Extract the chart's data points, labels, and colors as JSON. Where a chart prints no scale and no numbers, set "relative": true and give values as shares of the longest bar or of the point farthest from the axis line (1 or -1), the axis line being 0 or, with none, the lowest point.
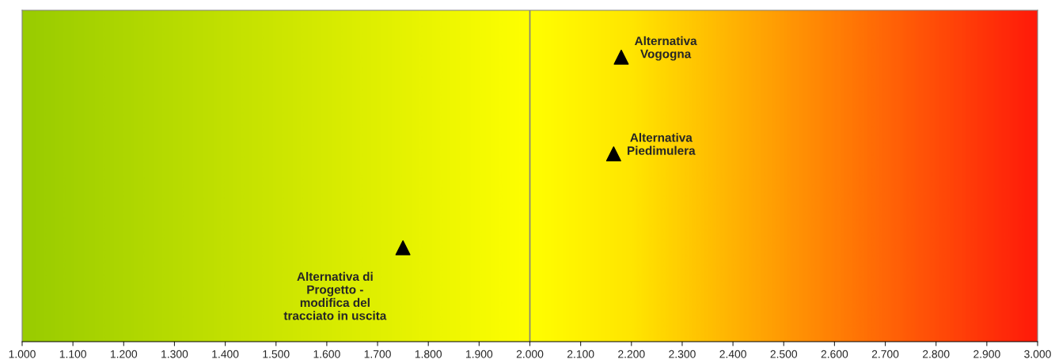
{
  "chart_data": {
    "type": "scatter",
    "relative": true,
    "marker": "triangle",
    "x": [
      1.75,
      2.165,
      2.18
    ],
    "series": [
      {
        "color": "#000000",
        "values": [
          0.33,
          0.66,
          1
        ]
      }
    ],
    "xlim": [
      1,
      3
    ],
    "xticks": [
      {
        "value": 1,
        "label": "1.000"
      },
      {
        "value": 1.1,
        "label": "1.100"
      },
      {
        "value": 1.2,
        "label": "1.200"
      },
      {
        "value": 1.3,
        "label": "1.300"
      },
      {
        "value": 1.4,
        "label": "1.400"
      },
      {
        "value": 1.5,
        "label": "1.500"
      },
      {
        "value": 1.6,
        "label": "1.600"
      },
      {
        "value": 1.7,
        "label": "1.700"
      },
      {
        "value": 1.8,
        "label": "1.800"
      },
      {
        "value": 1.9,
        "label": "1.900"
      },
      {
        "value": 2,
        "label": "2.000"
      },
      {
        "value": 2.1,
        "label": "2.100"
      },
      {
        "value": 2.2,
        "label": "2.200"
      },
      {
        "value": 2.3,
        "label": "2.300"
      },
      {
        "value": 2.4,
        "label": "2.400"
      },
      {
        "value": 2.5,
        "label": "2.500"
      },
      {
        "value": 2.6,
        "label": "2.600"
      },
      {
        "value": 2.7,
        "label": "2.700"
      },
      {
        "value": 2.8,
        "label": "2.800"
      },
      {
        "value": 2.9,
        "label": "2.900"
      },
      {
        "value": 3,
        "label": "3.000"
      }
    ],
    "ref_lines": [
      {
        "axis": "x",
        "value": 2,
        "color": "#808080"
      }
    ],
    "tick_labels": "x",
    "grid": false,
    "annotations": [
      {
        "text": "Alternativa di\nProgetto -\nmodifica del\ntracciato in uscita",
        "x": 1.75,
        "y": 0.33
      },
      {
        "text": "Alternativa\nPiedimulera",
        "x": 2.165,
        "y": 0.66
      },
      {
        "text": "Alternativa\nVogogna",
        "x": 2.18,
        "y": 1
      }
    ]
  }
}
